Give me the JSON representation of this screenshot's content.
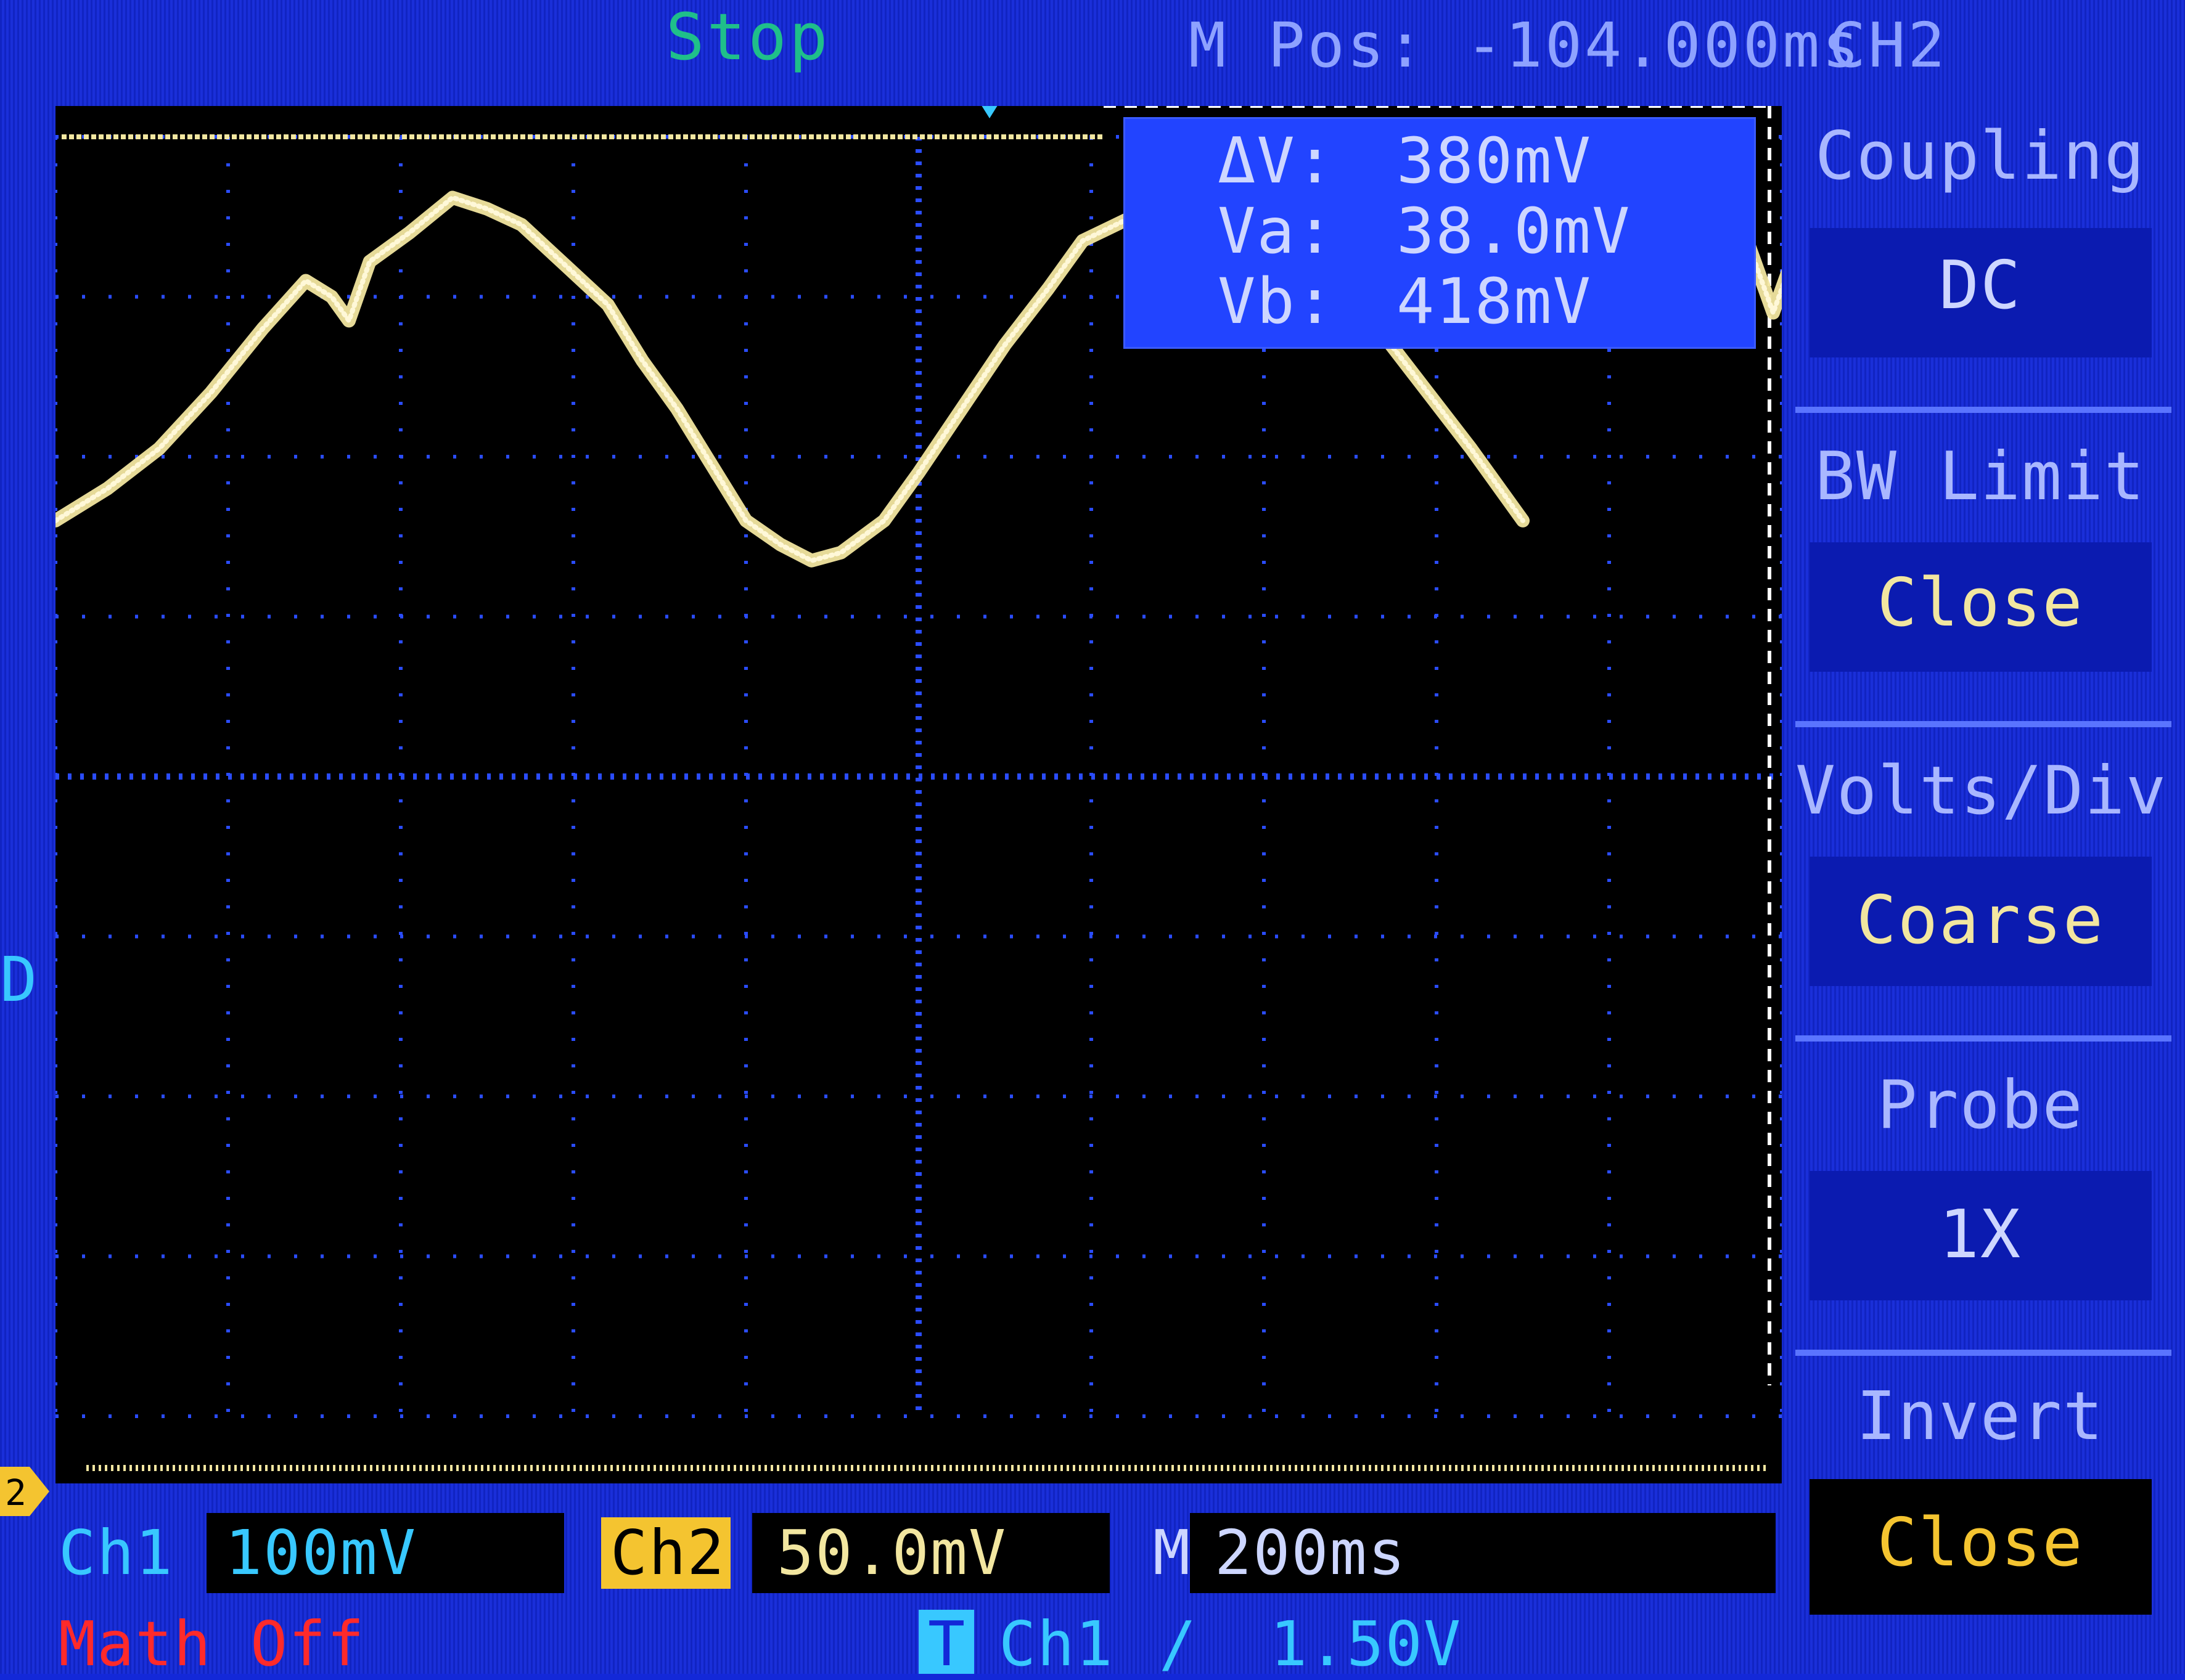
{
  "header": {
    "run_state": "Stop",
    "horizontal_position": "M Pos: -104.000ms",
    "active_channel": "CH2"
  },
  "cursor_readout": {
    "delta_label": "ΔV:",
    "delta_value": "380mV",
    "va_label": "Va:",
    "va_value": "38.0mV",
    "vb_label": "Vb:",
    "vb_value": "418mV"
  },
  "menu": {
    "coupling_title": "Coupling",
    "coupling_value": "DC",
    "bw_limit_title": "BW Limit",
    "bw_limit_value": "Close",
    "volts_div_title": "Volts/Div",
    "volts_div_value": "Coarse",
    "probe_title": "Probe",
    "probe_value": "1X",
    "invert_title": "Invert",
    "invert_value": "Close"
  },
  "footer": {
    "ch1_label": "Ch1",
    "ch1_scale": "100mV",
    "ch2_label": "Ch2",
    "ch2_scale": "50.0mV",
    "timebase_label": "M",
    "timebase_value": "200ms",
    "math_state": "Math Off",
    "trigger_badge": "T",
    "trigger_source": "Ch1",
    "trigger_slope": "/",
    "trigger_level": "1.50V"
  },
  "markers": {
    "ch1_ground_marker": "D",
    "ch2_ground_marker": "2"
  },
  "colors": {
    "background_blue": "#1328d8",
    "trace_yellow": "#f2e6a0",
    "grid_blue": "#2a4cff",
    "run_state_green": "#1fbf8a",
    "math_red": "#ff2a2a",
    "ch2_badge_yellow": "#f4c430"
  },
  "waveform_ch2": {
    "units": "divisions",
    "grid_divisions": [
      10,
      8
    ],
    "points": [
      [
        0.0,
        1.6
      ],
      [
        0.3,
        1.8
      ],
      [
        0.6,
        2.05
      ],
      [
        0.9,
        2.4
      ],
      [
        1.2,
        2.8
      ],
      [
        1.45,
        3.1
      ],
      [
        1.6,
        3.0
      ],
      [
        1.7,
        2.85
      ],
      [
        1.82,
        3.22
      ],
      [
        2.05,
        3.4
      ],
      [
        2.3,
        3.62
      ],
      [
        2.5,
        3.55
      ],
      [
        2.7,
        3.45
      ],
      [
        2.95,
        3.2
      ],
      [
        3.2,
        2.95
      ],
      [
        3.4,
        2.6
      ],
      [
        3.6,
        2.3
      ],
      [
        3.8,
        1.95
      ],
      [
        4.0,
        1.6
      ],
      [
        4.2,
        1.45
      ],
      [
        4.38,
        1.35
      ],
      [
        4.55,
        1.4
      ],
      [
        4.8,
        1.6
      ],
      [
        5.0,
        1.9
      ],
      [
        5.25,
        2.3
      ],
      [
        5.5,
        2.7
      ],
      [
        5.75,
        3.05
      ],
      [
        5.95,
        3.35
      ],
      [
        6.2,
        3.48
      ],
      [
        6.38,
        3.52
      ],
      [
        6.55,
        3.45
      ],
      [
        6.75,
        3.0
      ],
      [
        6.88,
        2.8
      ],
      [
        7.0,
        3.08
      ],
      [
        7.2,
        3.28
      ],
      [
        7.45,
        3.05
      ],
      [
        7.7,
        2.75
      ],
      [
        7.95,
        2.4
      ],
      [
        8.2,
        2.05
      ],
      [
        8.5,
        1.6
      ]
    ],
    "segment_2_points": [
      [
        9.8,
        3.35
      ],
      [
        9.95,
        2.9
      ],
      [
        10.05,
        3.2
      ],
      [
        10.15,
        3.05
      ]
    ]
  }
}
